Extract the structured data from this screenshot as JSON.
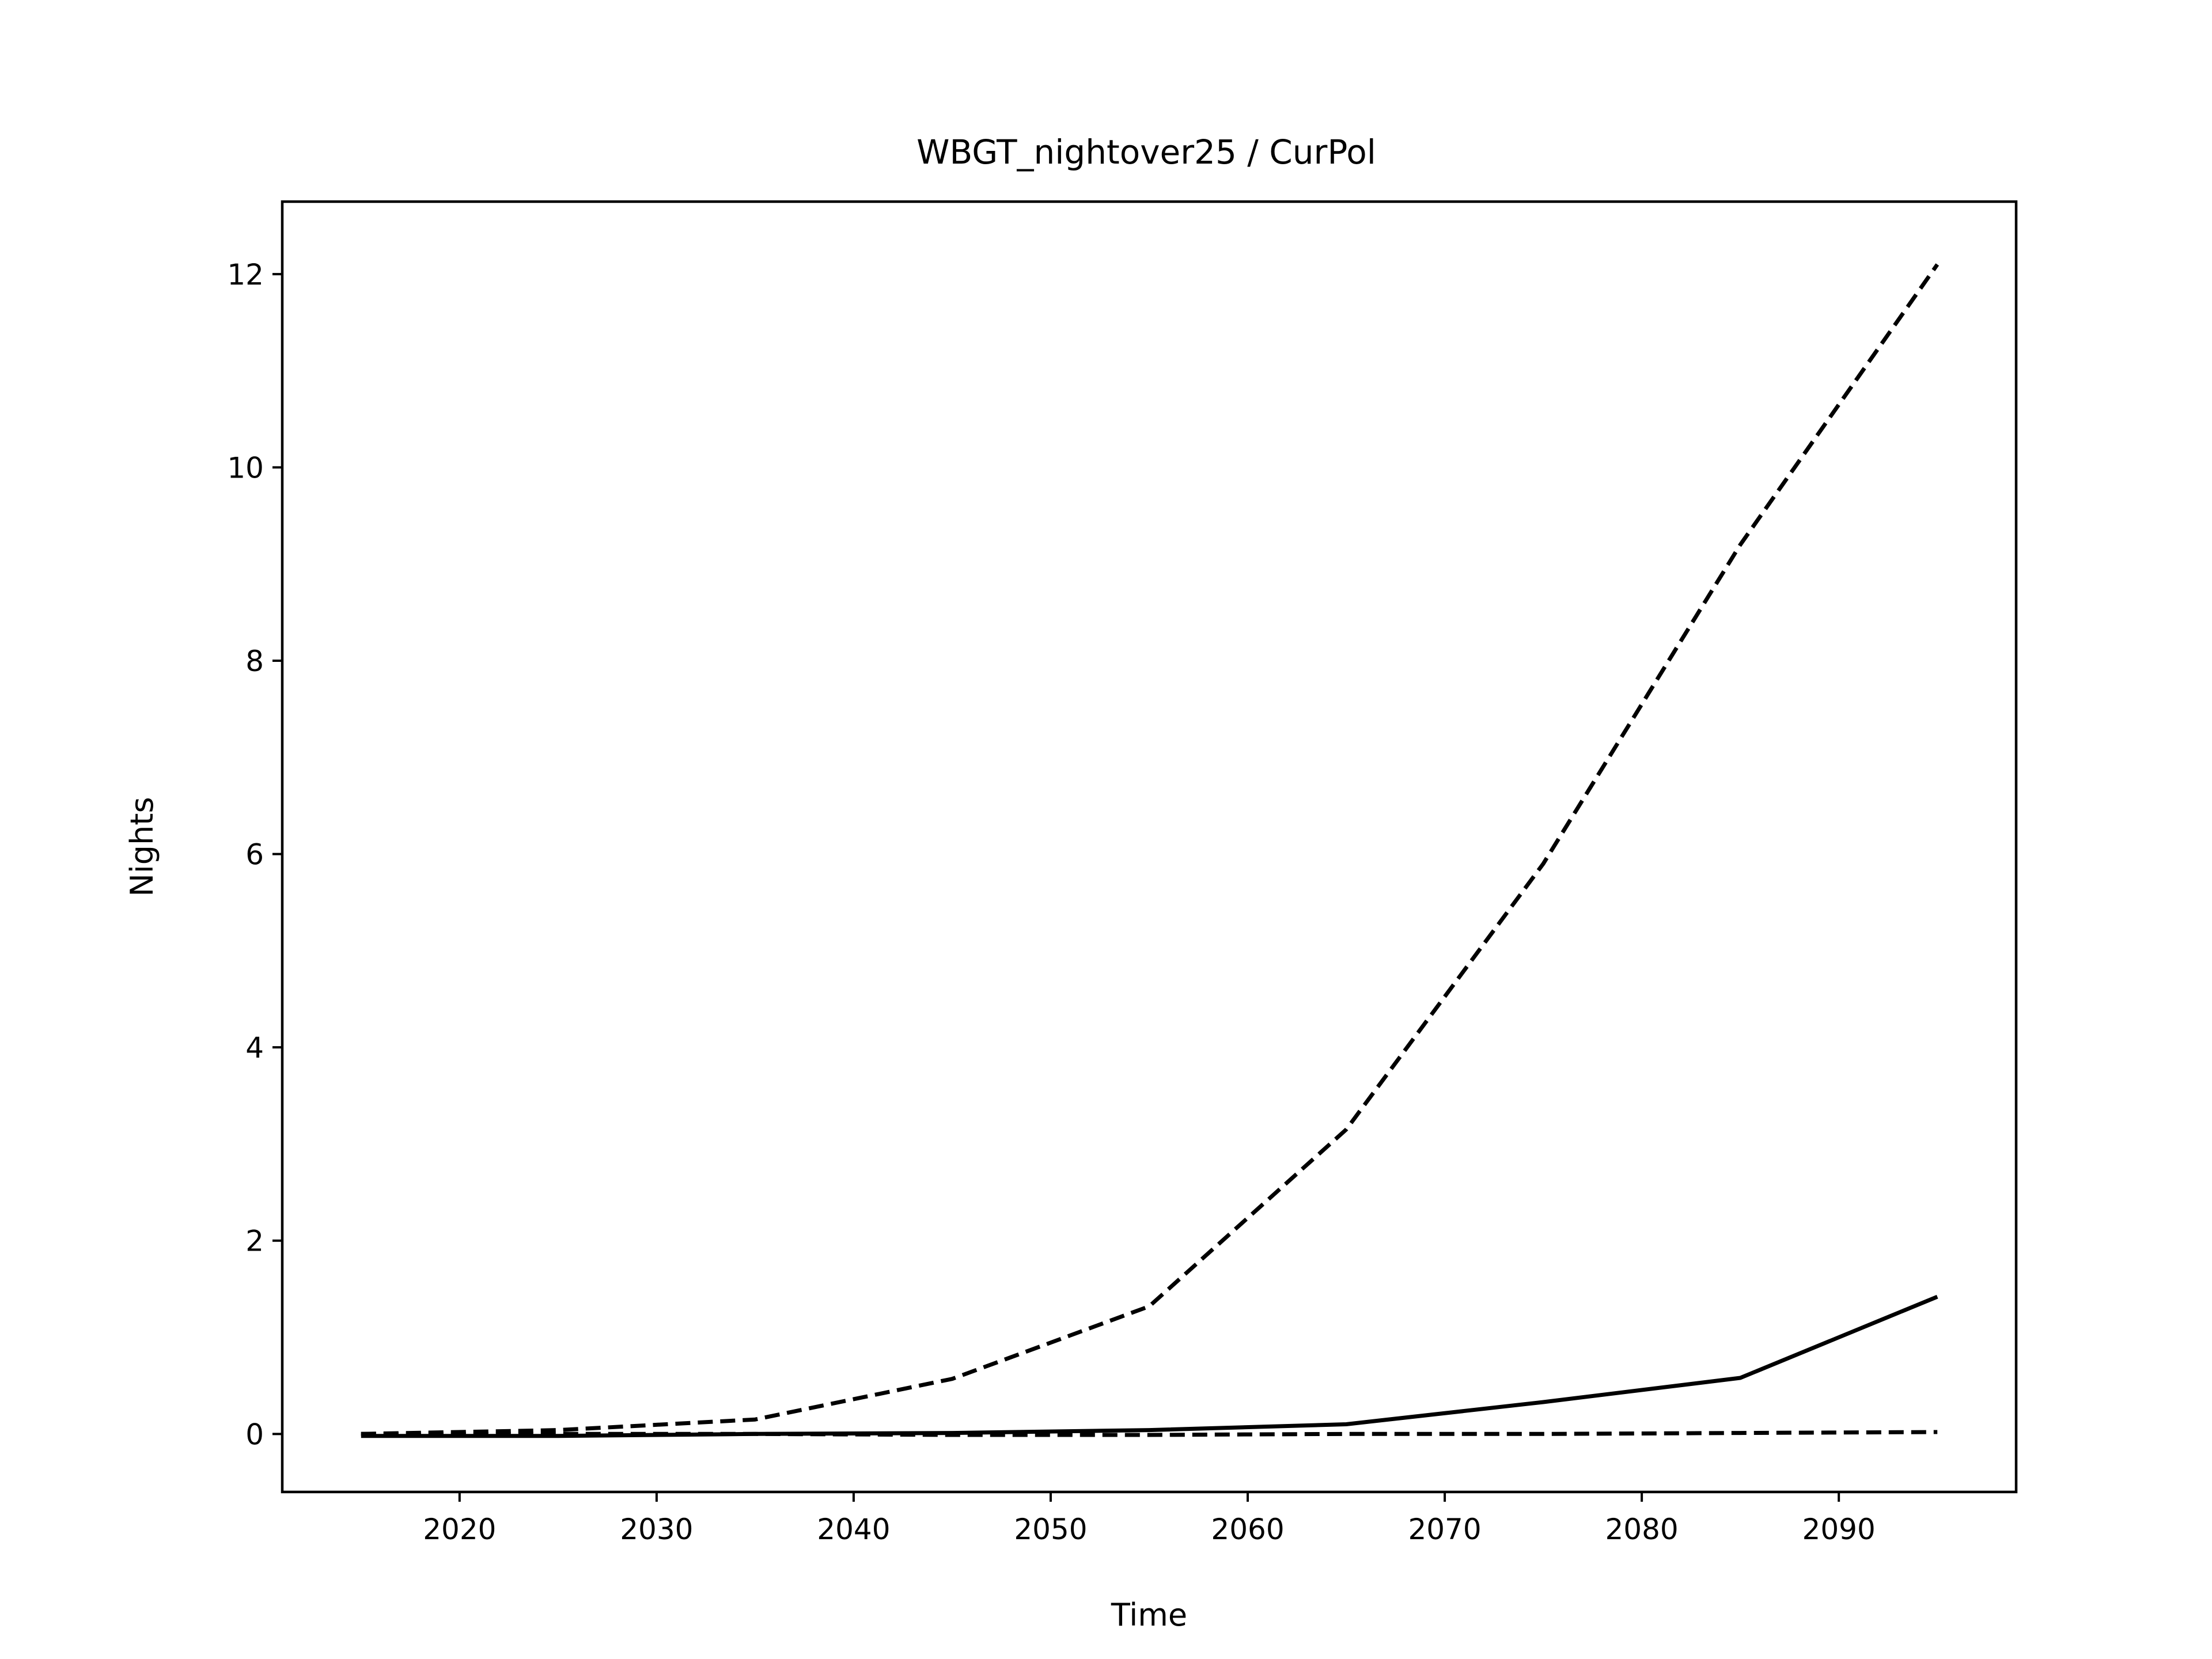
{
  "chart_data": {
    "type": "line",
    "title": "WBGT_nightover25 / CurPol",
    "xlabel": "Time",
    "ylabel": "Nights",
    "xlim": [
      2011,
      2099
    ],
    "ylim": [
      -0.6,
      12.75
    ],
    "xticks": [
      2020,
      2030,
      2040,
      2050,
      2060,
      2070,
      2080,
      2090
    ],
    "yticks": [
      0,
      2,
      4,
      6,
      8,
      10,
      12
    ],
    "grid": false,
    "legend": null,
    "x": [
      2015,
      2025,
      2035,
      2045,
      2055,
      2065,
      2075,
      2085,
      2095
    ],
    "series": [
      {
        "style": "dashed",
        "color": "#000000",
        "values": [
          0.0,
          0.04,
          0.15,
          0.57,
          1.32,
          3.15,
          5.9,
          9.2,
          12.1
        ]
      },
      {
        "style": "solid",
        "color": "#000000",
        "values": [
          -0.02,
          -0.02,
          0.0,
          0.01,
          0.04,
          0.1,
          0.33,
          0.58,
          1.42
        ]
      },
      {
        "style": "dashed",
        "color": "#000000",
        "values": [
          0.0,
          0.0,
          0.0,
          -0.01,
          -0.01,
          0.0,
          0.0,
          0.01,
          0.02
        ]
      }
    ]
  }
}
